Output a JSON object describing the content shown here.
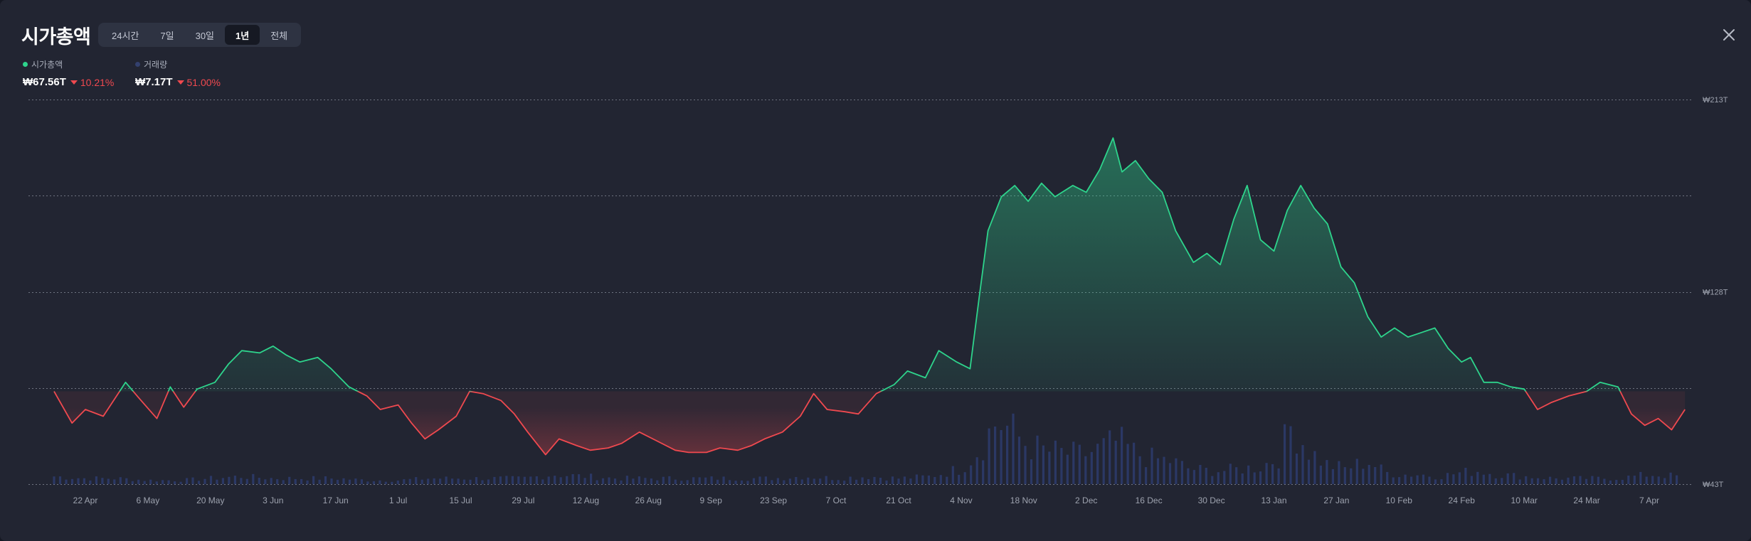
{
  "header": {
    "title": "시가총액",
    "ranges": [
      "24시간",
      "7일",
      "30일",
      "1년",
      "전체"
    ],
    "active_range": "1년",
    "close_icon": "close-icon"
  },
  "legend": [
    {
      "label": "시가총액",
      "color": "#2ed48c"
    },
    {
      "label": "거래량",
      "color": "#33406e"
    }
  ],
  "stats": [
    {
      "value": "₩67.56T",
      "change": "10.21%",
      "direction": "down"
    },
    {
      "value": "₩7.17T",
      "change": "51.00%",
      "direction": "down"
    }
  ],
  "colors": {
    "up": "#2ed48c",
    "down": "#f0494f",
    "volume": "#2b3865",
    "grid": "#8a8f9c",
    "background": "#222532"
  },
  "chart_data": {
    "type": "area",
    "baseline": 84,
    "ylim": [
      43,
      213
    ],
    "y_tick_labels": [
      "₩213T",
      "₩128T",
      "₩43T"
    ],
    "x_tick_labels": [
      "22 Apr",
      "6 May",
      "20 May",
      "3 Jun",
      "17 Jun",
      "1 Jul",
      "15 Jul",
      "29 Jul",
      "12 Aug",
      "26 Aug",
      "9 Sep",
      "23 Sep",
      "7 Oct",
      "21 Oct",
      "4 Nov",
      "18 Nov",
      "2 Dec",
      "16 Dec",
      "30 Dec",
      "13 Jan",
      "27 Jan",
      "10 Feb",
      "24 Feb",
      "10 Mar",
      "24 Mar",
      "7 Apr"
    ],
    "x_tick_dates": [
      "2024-04-22",
      "2024-05-06",
      "2024-05-20",
      "2024-06-03",
      "2024-06-17",
      "2024-07-01",
      "2024-07-15",
      "2024-07-29",
      "2024-08-12",
      "2024-08-26",
      "2024-09-09",
      "2024-09-23",
      "2024-10-07",
      "2024-10-21",
      "2024-11-04",
      "2024-11-18",
      "2024-12-02",
      "2024-12-16",
      "2024-12-30",
      "2025-01-13",
      "2025-01-27",
      "2025-02-10",
      "2025-02-24",
      "2025-03-10",
      "2025-03-24",
      "2025-04-07"
    ],
    "series": [
      {
        "name": "시가총액",
        "unit": "₩T",
        "points": [
          [
            "2024-04-15",
            84
          ],
          [
            "2024-04-19",
            70
          ],
          [
            "2024-04-22",
            76
          ],
          [
            "2024-04-26",
            73
          ],
          [
            "2024-05-01",
            88
          ],
          [
            "2024-05-04",
            81
          ],
          [
            "2024-05-08",
            72
          ],
          [
            "2024-05-11",
            86
          ],
          [
            "2024-05-14",
            77
          ],
          [
            "2024-05-17",
            85
          ],
          [
            "2024-05-21",
            88
          ],
          [
            "2024-05-24",
            96
          ],
          [
            "2024-05-27",
            102
          ],
          [
            "2024-05-31",
            101
          ],
          [
            "2024-06-03",
            104
          ],
          [
            "2024-06-06",
            100
          ],
          [
            "2024-06-09",
            97
          ],
          [
            "2024-06-13",
            99
          ],
          [
            "2024-06-16",
            94
          ],
          [
            "2024-06-20",
            86
          ],
          [
            "2024-06-24",
            82
          ],
          [
            "2024-06-27",
            76
          ],
          [
            "2024-07-01",
            78
          ],
          [
            "2024-07-04",
            70
          ],
          [
            "2024-07-07",
            63
          ],
          [
            "2024-07-10",
            67
          ],
          [
            "2024-07-14",
            73
          ],
          [
            "2024-07-17",
            84
          ],
          [
            "2024-07-20",
            83
          ],
          [
            "2024-07-24",
            80
          ],
          [
            "2024-07-27",
            74
          ],
          [
            "2024-07-30",
            66
          ],
          [
            "2024-08-03",
            56
          ],
          [
            "2024-08-06",
            63
          ],
          [
            "2024-08-10",
            60
          ],
          [
            "2024-08-13",
            58
          ],
          [
            "2024-08-17",
            59
          ],
          [
            "2024-08-20",
            61
          ],
          [
            "2024-08-24",
            66
          ],
          [
            "2024-08-28",
            62
          ],
          [
            "2024-09-01",
            58
          ],
          [
            "2024-09-04",
            57
          ],
          [
            "2024-09-08",
            57
          ],
          [
            "2024-09-11",
            59
          ],
          [
            "2024-09-15",
            58
          ],
          [
            "2024-09-18",
            60
          ],
          [
            "2024-09-21",
            63
          ],
          [
            "2024-09-25",
            66
          ],
          [
            "2024-09-29",
            73
          ],
          [
            "2024-10-02",
            83
          ],
          [
            "2024-10-05",
            76
          ],
          [
            "2024-10-09",
            75
          ],
          [
            "2024-10-12",
            74
          ],
          [
            "2024-10-16",
            83
          ],
          [
            "2024-10-20",
            87
          ],
          [
            "2024-10-23",
            93
          ],
          [
            "2024-10-27",
            90
          ],
          [
            "2024-10-30",
            102
          ],
          [
            "2024-11-03",
            97
          ],
          [
            "2024-11-06",
            94
          ],
          [
            "2024-11-08",
            125
          ],
          [
            "2024-11-10",
            155
          ],
          [
            "2024-11-13",
            170
          ],
          [
            "2024-11-16",
            175
          ],
          [
            "2024-11-19",
            168
          ],
          [
            "2024-11-22",
            176
          ],
          [
            "2024-11-25",
            170
          ],
          [
            "2024-11-29",
            175
          ],
          [
            "2024-12-02",
            172
          ],
          [
            "2024-12-05",
            182
          ],
          [
            "2024-12-08",
            196
          ],
          [
            "2024-12-10",
            181
          ],
          [
            "2024-12-13",
            186
          ],
          [
            "2024-12-16",
            178
          ],
          [
            "2024-12-19",
            172
          ],
          [
            "2024-12-22",
            155
          ],
          [
            "2024-12-26",
            141
          ],
          [
            "2024-12-29",
            145
          ],
          [
            "2025-01-01",
            140
          ],
          [
            "2025-01-04",
            160
          ],
          [
            "2025-01-07",
            175
          ],
          [
            "2025-01-10",
            151
          ],
          [
            "2025-01-13",
            146
          ],
          [
            "2025-01-16",
            164
          ],
          [
            "2025-01-19",
            175
          ],
          [
            "2025-01-22",
            165
          ],
          [
            "2025-01-25",
            158
          ],
          [
            "2025-01-28",
            139
          ],
          [
            "2025-01-31",
            132
          ],
          [
            "2025-02-03",
            117
          ],
          [
            "2025-02-06",
            108
          ],
          [
            "2025-02-09",
            112
          ],
          [
            "2025-02-12",
            108
          ],
          [
            "2025-02-15",
            110
          ],
          [
            "2025-02-18",
            112
          ],
          [
            "2025-02-21",
            103
          ],
          [
            "2025-02-24",
            97
          ],
          [
            "2025-02-26",
            99
          ],
          [
            "2025-03-01",
            88
          ],
          [
            "2025-03-04",
            88
          ],
          [
            "2025-03-07",
            86
          ],
          [
            "2025-03-10",
            85
          ],
          [
            "2025-03-13",
            76
          ],
          [
            "2025-03-16",
            79
          ],
          [
            "2025-03-20",
            82
          ],
          [
            "2025-03-24",
            84
          ],
          [
            "2025-03-27",
            88
          ],
          [
            "2025-03-31",
            86
          ],
          [
            "2025-04-03",
            74
          ],
          [
            "2025-04-06",
            69
          ],
          [
            "2025-04-09",
            72
          ],
          [
            "2025-04-12",
            67
          ],
          [
            "2025-04-15",
            76
          ]
        ]
      },
      {
        "name": "거래량",
        "unit": "₩T",
        "points": [
          [
            "2024-04-15",
            4
          ],
          [
            "2024-04-22",
            3
          ],
          [
            "2024-04-29",
            3
          ],
          [
            "2024-05-06",
            2
          ],
          [
            "2024-05-13",
            2
          ],
          [
            "2024-05-20",
            3
          ],
          [
            "2024-05-27",
            4
          ],
          [
            "2024-06-03",
            3
          ],
          [
            "2024-06-10",
            3
          ],
          [
            "2024-06-17",
            3
          ],
          [
            "2024-06-24",
            2
          ],
          [
            "2024-07-01",
            2
          ],
          [
            "2024-07-08",
            3
          ],
          [
            "2024-07-15",
            3
          ],
          [
            "2024-07-22",
            3
          ],
          [
            "2024-07-29",
            3
          ],
          [
            "2024-08-05",
            5
          ],
          [
            "2024-08-12",
            4
          ],
          [
            "2024-08-19",
            3
          ],
          [
            "2024-08-26",
            3
          ],
          [
            "2024-09-02",
            3
          ],
          [
            "2024-09-09",
            3
          ],
          [
            "2024-09-16",
            3
          ],
          [
            "2024-09-23",
            3
          ],
          [
            "2024-09-30",
            4
          ],
          [
            "2024-10-07",
            3
          ],
          [
            "2024-10-14",
            4
          ],
          [
            "2024-10-21",
            3
          ],
          [
            "2024-10-28",
            4
          ],
          [
            "2024-11-04",
            8
          ],
          [
            "2024-11-08",
            18
          ],
          [
            "2024-11-12",
            33
          ],
          [
            "2024-11-15",
            28
          ],
          [
            "2024-11-19",
            20
          ],
          [
            "2024-11-23",
            17
          ],
          [
            "2024-11-27",
            16
          ],
          [
            "2024-12-01",
            15
          ],
          [
            "2024-12-05",
            18
          ],
          [
            "2024-12-09",
            22
          ],
          [
            "2024-12-13",
            16
          ],
          [
            "2024-12-17",
            13
          ],
          [
            "2024-12-21",
            12
          ],
          [
            "2024-12-25",
            8
          ],
          [
            "2024-12-29",
            7
          ],
          [
            "2025-01-02",
            7
          ],
          [
            "2025-01-06",
            8
          ],
          [
            "2025-01-10",
            9
          ],
          [
            "2025-01-14",
            14
          ],
          [
            "2025-01-17",
            31
          ],
          [
            "2025-01-21",
            17
          ],
          [
            "2025-01-25",
            10
          ],
          [
            "2025-01-29",
            8
          ],
          [
            "2025-02-03",
            12
          ],
          [
            "2025-02-07",
            6
          ],
          [
            "2025-02-11",
            5
          ],
          [
            "2025-02-15",
            5
          ],
          [
            "2025-02-19",
            4
          ],
          [
            "2025-02-24",
            6
          ],
          [
            "2025-02-28",
            7
          ],
          [
            "2025-03-04",
            5
          ],
          [
            "2025-03-10",
            4
          ],
          [
            "2025-03-17",
            3
          ],
          [
            "2025-03-24",
            3
          ],
          [
            "2025-03-31",
            3
          ],
          [
            "2025-04-07",
            5
          ],
          [
            "2025-04-14",
            4
          ]
        ]
      }
    ]
  }
}
